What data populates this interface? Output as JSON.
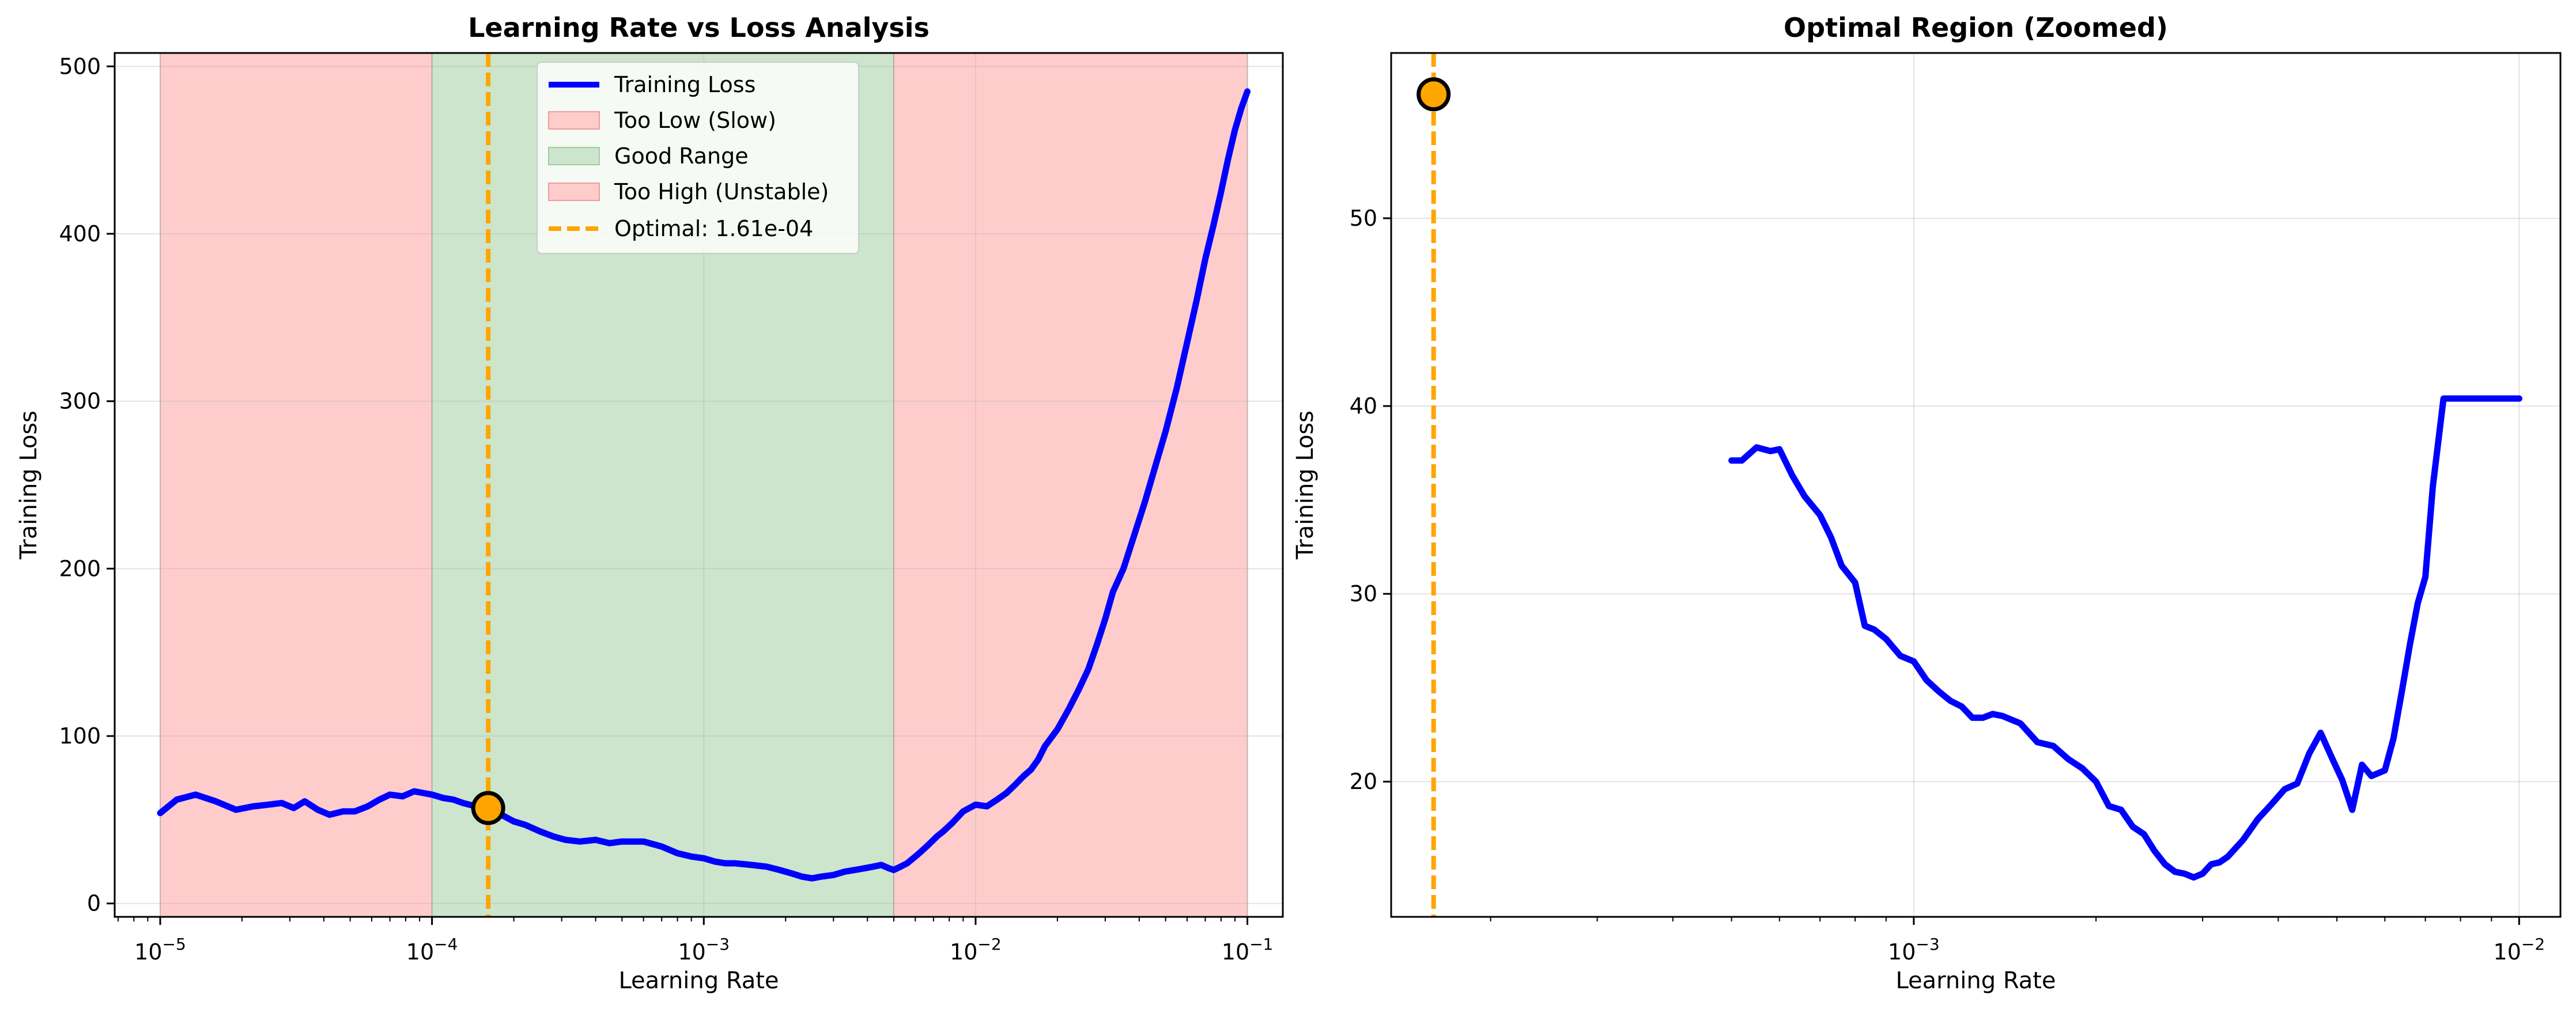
{
  "chart_data": [
    {
      "type": "line",
      "title": "Learning Rate vs Loss Analysis",
      "xlabel": "Learning Rate",
      "ylabel": "Training Loss",
      "xscale": "log",
      "xlim": [
        6.8e-06,
        0.135
      ],
      "ylim": [
        -8,
        508
      ],
      "x_ticks": [
        1e-05,
        0.0001,
        0.001,
        0.01,
        0.1
      ],
      "x_tick_labels": [
        {
          "base": "10",
          "exp": "−5"
        },
        {
          "base": "10",
          "exp": "−4"
        },
        {
          "base": "10",
          "exp": "−3"
        },
        {
          "base": "10",
          "exp": "−2"
        },
        {
          "base": "10",
          "exp": "−1"
        }
      ],
      "y_ticks": [
        0,
        100,
        200,
        300,
        400,
        500
      ],
      "y_tick_labels": [
        "0",
        "100",
        "200",
        "300",
        "400",
        "500"
      ],
      "grid": true,
      "legend_position": "top-center",
      "legend": [
        {
          "label": "Training Loss",
          "kind": "line",
          "color": "#0000ff"
        },
        {
          "label": "Too Low (Slow)",
          "kind": "patch",
          "color": "#f8b0b0"
        },
        {
          "label": "Good Range",
          "kind": "patch",
          "color": "#cbe3cb"
        },
        {
          "label": "Too High (Unstable)",
          "kind": "patch",
          "color": "#f8b0b0"
        },
        {
          "label": "Optimal: 1.61e-04",
          "kind": "dashed",
          "color": "#ffa500"
        }
      ],
      "regions": [
        {
          "from": 1e-05,
          "to": 0.0001,
          "color": "#ffcccc",
          "label": "Too Low (Slow)"
        },
        {
          "from": 0.0001,
          "to": 0.005,
          "color": "#cce5cc",
          "label": "Good Range"
        },
        {
          "from": 0.005,
          "to": 0.1,
          "color": "#ffcccc",
          "label": "Too High (Unstable)"
        }
      ],
      "optimal": {
        "x": 0.000161,
        "y": 57,
        "label": "Optimal: 1.61e-04",
        "color": "#ffa500"
      },
      "series": [
        {
          "name": "Training Loss",
          "color": "#0000ff",
          "x": [
            1e-05,
            1.15e-05,
            1.35e-05,
            1.6e-05,
            1.9e-05,
            2.2e-05,
            2.5e-05,
            2.8e-05,
            3.1e-05,
            3.4e-05,
            3.8e-05,
            4.2e-05,
            4.7e-05,
            5.2e-05,
            5.8e-05,
            6.4e-05,
            7e-05,
            7.8e-05,
            8.6e-05,
            0.0001,
            0.00011,
            0.00012,
            0.00013,
            0.000145,
            0.000161,
            0.00018,
            0.0002,
            0.00022,
            0.00025,
            0.00028,
            0.00031,
            0.00035,
            0.0004,
            0.00045,
            0.0005,
            0.00055,
            0.0006,
            0.0007,
            0.0008,
            0.0009,
            0.001,
            0.0011,
            0.0012,
            0.0013,
            0.0015,
            0.0017,
            0.0019,
            0.0021,
            0.0023,
            0.0025,
            0.0027,
            0.003,
            0.0033,
            0.0036,
            0.0039,
            0.0042,
            0.0045,
            0.0048,
            0.005,
            0.0053,
            0.0056,
            0.006,
            0.0063,
            0.0066,
            0.0069,
            0.0072,
            0.0076,
            0.0082,
            0.009,
            0.01,
            0.011,
            0.012,
            0.013,
            0.014,
            0.015,
            0.016,
            0.017,
            0.018,
            0.02,
            0.022,
            0.024,
            0.026,
            0.028,
            0.03,
            0.032,
            0.035,
            0.038,
            0.042,
            0.046,
            0.05,
            0.055,
            0.06,
            0.065,
            0.07,
            0.075,
            0.08,
            0.085,
            0.09,
            0.095,
            0.1
          ],
          "values": [
            54,
            62,
            65,
            61,
            56,
            58,
            59,
            60,
            57,
            61,
            56,
            53,
            55,
            55,
            58,
            62,
            65,
            64,
            67,
            65,
            63,
            62,
            60,
            58,
            57,
            53,
            49,
            47,
            43,
            40,
            38,
            37,
            38,
            36,
            37,
            37,
            37,
            34,
            30,
            28,
            27,
            25,
            24,
            24,
            23,
            22,
            20,
            18,
            16,
            15,
            16,
            17,
            19,
            20,
            21,
            22,
            23,
            21,
            20,
            22,
            24,
            28,
            31,
            34,
            37,
            40,
            43,
            48,
            55,
            59,
            58,
            62,
            66,
            71,
            76,
            80,
            86,
            94,
            104,
            116,
            128,
            140,
            155,
            170,
            186,
            200,
            218,
            240,
            262,
            282,
            308,
            335,
            360,
            385,
            405,
            425,
            445,
            462,
            475,
            485
          ]
        }
      ]
    },
    {
      "type": "line",
      "title": "Optimal Region (Zoomed)",
      "xlabel": "Learning Rate",
      "ylabel": "Training Loss",
      "xscale": "log",
      "xlim": [
        0.000137,
        0.0117
      ],
      "ylim": [
        12.8,
        58.8
      ],
      "x_ticks": [
        0.001,
        0.01
      ],
      "x_tick_labels": [
        {
          "base": "10",
          "exp": "−3"
        },
        {
          "base": "10",
          "exp": "−2"
        }
      ],
      "y_ticks": [
        20,
        30,
        40,
        50
      ],
      "y_tick_labels": [
        "20",
        "30",
        "40",
        "50"
      ],
      "grid": true,
      "optimal": {
        "x": 0.000161,
        "y": 56.6,
        "color": "#ffa500"
      },
      "series": [
        {
          "name": "Training Loss",
          "color": "#0000ff",
          "x": [
            0.0005,
            0.00052,
            0.00055,
            0.00058,
            0.0006,
            0.00063,
            0.00066,
            0.0007,
            0.00073,
            0.00076,
            0.0008,
            0.00083,
            0.00086,
            0.0009,
            0.00095,
            0.001,
            0.00105,
            0.0011,
            0.00115,
            0.0012,
            0.00125,
            0.0013,
            0.00135,
            0.0014,
            0.0015,
            0.0016,
            0.0017,
            0.0018,
            0.0019,
            0.002,
            0.0021,
            0.0022,
            0.0023,
            0.0024,
            0.0025,
            0.0026,
            0.0027,
            0.0028,
            0.0029,
            0.003,
            0.0031,
            0.0032,
            0.0033,
            0.0035,
            0.0037,
            0.0039,
            0.0041,
            0.0043,
            0.0045,
            0.0047,
            0.0049,
            0.0051,
            0.0053,
            0.0055,
            0.0057,
            0.006,
            0.0062,
            0.0064,
            0.0066,
            0.0068,
            0.007,
            0.0072,
            0.0075,
            0.0078,
            0.0082,
            0.0086,
            0.0089,
            0.0092,
            0.0095,
            0.0098,
            0.01
          ],
          "values": [
            37.1,
            37.1,
            37.8,
            37.6,
            37.7,
            36.3,
            35.2,
            34.2,
            33.0,
            31.5,
            30.6,
            28.3,
            28.1,
            27.6,
            26.7,
            26.4,
            25.4,
            24.8,
            24.3,
            24.0,
            23.4,
            23.4,
            23.6,
            23.5,
            23.1,
            22.1,
            21.9,
            21.2,
            20.7,
            20.0,
            18.7,
            18.5,
            17.6,
            17.2,
            16.3,
            15.6,
            15.2,
            15.1,
            14.9,
            15.1,
            15.6,
            15.7,
            16.0,
            16.9,
            18.0,
            18.8,
            19.6,
            19.9,
            21.5,
            22.6,
            21.3,
            20.1,
            18.5,
            20.9,
            20.3,
            20.6,
            22.3,
            24.8,
            27.3,
            29.5,
            30.9,
            35.7,
            40.4,
            40.4,
            40.4,
            40.4,
            40.4,
            40.4,
            40.4,
            40.4,
            40.4
          ]
        }
      ]
    }
  ]
}
